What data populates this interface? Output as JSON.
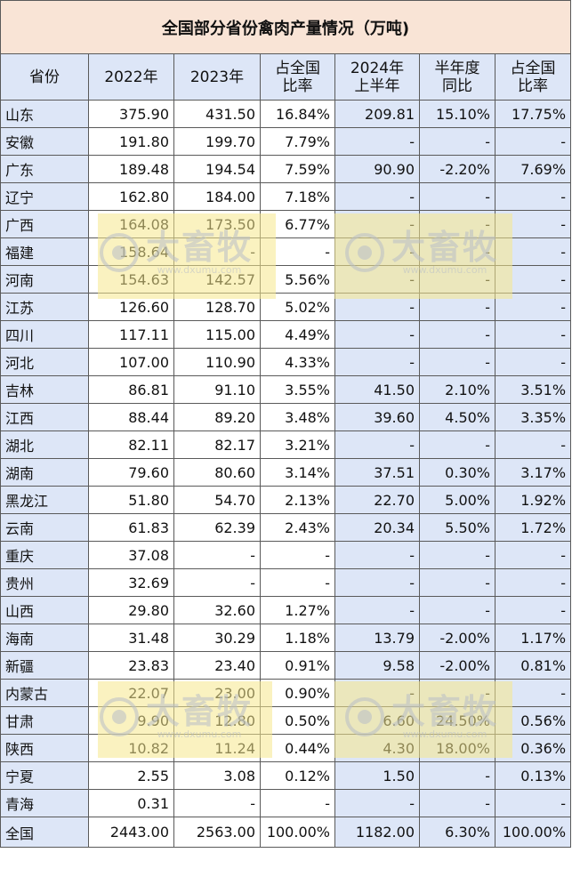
{
  "title": "全国部分省份禽肉产量情况（万吨)",
  "headers": {
    "province": "省份",
    "y2022": "2022年",
    "y2023": "2023年",
    "share2023_l1": "占全国",
    "share2023_l2": "比率",
    "h2024_l1": "2024年",
    "h2024_l2": "上半年",
    "yoy_l1": "半年度",
    "yoy_l2": "同比",
    "share2024_l1": "占全国",
    "share2024_l2": "比率"
  },
  "rows": [
    {
      "province": "山东",
      "y2022": "375.90",
      "y2023": "431.50",
      "share2023": "16.84%",
      "h2024": "209.81",
      "yoy": "15.10%",
      "yoy_color": "red",
      "share2024": "17.75%"
    },
    {
      "province": "安徽",
      "y2022": "191.80",
      "y2023": "199.70",
      "share2023": "7.79%",
      "h2024": "-",
      "yoy": "-",
      "yoy_color": "",
      "share2024": "-"
    },
    {
      "province": "广东",
      "y2022": "189.48",
      "y2023": "194.54",
      "share2023": "7.59%",
      "h2024": "90.90",
      "yoy": "-2.20%",
      "yoy_color": "green",
      "share2024": "7.69%"
    },
    {
      "province": "辽宁",
      "y2022": "162.80",
      "y2023": "184.00",
      "share2023": "7.18%",
      "h2024": "-",
      "yoy": "-",
      "yoy_color": "",
      "share2024": "-"
    },
    {
      "province": "广西",
      "y2022": "164.08",
      "y2023": "173.50",
      "share2023": "6.77%",
      "h2024": "-",
      "yoy": "-",
      "yoy_color": "",
      "share2024": "-"
    },
    {
      "province": "福建",
      "y2022": "158.64",
      "y2023": "-",
      "share2023": "-",
      "h2024": "-",
      "yoy": "-",
      "yoy_color": "",
      "share2024": "-"
    },
    {
      "province": "河南",
      "y2022": "154.63",
      "y2023": "142.57",
      "share2023": "5.56%",
      "h2024": "-",
      "yoy": "-",
      "yoy_color": "",
      "share2024": "-"
    },
    {
      "province": "江苏",
      "y2022": "126.60",
      "y2023": "128.70",
      "share2023": "5.02%",
      "h2024": "-",
      "yoy": "-",
      "yoy_color": "",
      "share2024": "-"
    },
    {
      "province": "四川",
      "y2022": "117.11",
      "y2023": "115.00",
      "share2023": "4.49%",
      "h2024": "-",
      "yoy": "-",
      "yoy_color": "",
      "share2024": "-"
    },
    {
      "province": "河北",
      "y2022": "107.00",
      "y2023": "110.90",
      "share2023": "4.33%",
      "h2024": "-",
      "yoy": "-",
      "yoy_color": "",
      "share2024": "-"
    },
    {
      "province": "吉林",
      "y2022": "86.81",
      "y2023": "91.10",
      "share2023": "3.55%",
      "h2024": "41.50",
      "yoy": "2.10%",
      "yoy_color": "red",
      "share2024": "3.51%"
    },
    {
      "province": "江西",
      "y2022": "88.44",
      "y2023": "89.20",
      "share2023": "3.48%",
      "h2024": "39.60",
      "yoy": "4.50%",
      "yoy_color": "red",
      "share2024": "3.35%"
    },
    {
      "province": "湖北",
      "y2022": "82.11",
      "y2023": "82.17",
      "share2023": "3.21%",
      "h2024": "-",
      "yoy": "-",
      "yoy_color": "",
      "share2024": "-"
    },
    {
      "province": "湖南",
      "y2022": "79.60",
      "y2023": "80.60",
      "share2023": "3.14%",
      "h2024": "37.51",
      "yoy": "0.30%",
      "yoy_color": "red",
      "share2024": "3.17%"
    },
    {
      "province": "黑龙江",
      "y2022": "51.80",
      "y2023": "54.70",
      "share2023": "2.13%",
      "h2024": "22.70",
      "yoy": "5.00%",
      "yoy_color": "red",
      "share2024": "1.92%"
    },
    {
      "province": "云南",
      "y2022": "61.83",
      "y2023": "62.39",
      "share2023": "2.43%",
      "h2024": "20.34",
      "yoy": "5.50%",
      "yoy_color": "red",
      "share2024": "1.72%"
    },
    {
      "province": "重庆",
      "y2022": "37.08",
      "y2023": "-",
      "share2023": "-",
      "h2024": "-",
      "yoy": "-",
      "yoy_color": "",
      "share2024": "-"
    },
    {
      "province": "贵州",
      "y2022": "32.69",
      "y2023": "-",
      "share2023": "-",
      "h2024": "-",
      "yoy": "-",
      "yoy_color": "",
      "share2024": "-"
    },
    {
      "province": "山西",
      "y2022": "29.80",
      "y2023": "32.60",
      "share2023": "1.27%",
      "h2024": "-",
      "yoy": "-",
      "yoy_color": "",
      "share2024": "-"
    },
    {
      "province": "海南",
      "y2022": "31.48",
      "y2023": "30.29",
      "share2023": "1.18%",
      "h2024": "13.79",
      "yoy": "-2.00%",
      "yoy_color": "green",
      "share2024": "1.17%"
    },
    {
      "province": "新疆",
      "y2022": "23.83",
      "y2023": "23.40",
      "share2023": "0.91%",
      "h2024": "9.58",
      "yoy": "-2.00%",
      "yoy_color": "green",
      "share2024": "0.81%"
    },
    {
      "province": "内蒙古",
      "y2022": "22.07",
      "y2023": "23.00",
      "share2023": "0.90%",
      "h2024": "-",
      "yoy": "-",
      "yoy_color": "",
      "share2024": "-"
    },
    {
      "province": "甘肃",
      "y2022": "9.90",
      "y2023": "12.80",
      "share2023": "0.50%",
      "h2024": "6.60",
      "yoy": "24.50%",
      "yoy_color": "red",
      "share2024": "0.56%"
    },
    {
      "province": "陕西",
      "y2022": "10.82",
      "y2023": "11.24",
      "share2023": "0.44%",
      "h2024": "4.30",
      "yoy": "18.00%",
      "yoy_color": "red",
      "share2024": "0.36%"
    },
    {
      "province": "宁夏",
      "y2022": "2.55",
      "y2023": "3.08",
      "share2023": "0.12%",
      "h2024": "1.50",
      "yoy": "-",
      "yoy_color": "",
      "share2024": "0.13%"
    },
    {
      "province": "青海",
      "y2022": "0.31",
      "y2023": "-",
      "share2023": "-",
      "h2024": "-",
      "yoy": "-",
      "yoy_color": "",
      "share2024": "-"
    },
    {
      "province": "全国",
      "y2022": "2443.00",
      "y2023": "2563.00",
      "share2023": "100.00%",
      "h2024": "1182.00",
      "yoy": "6.30%",
      "yoy_color": "red",
      "share2024": "100.00%"
    }
  ],
  "watermark": {
    "text_cn": "大畜牧",
    "text_en": "www.dxumu.com",
    "icon": "dxumu-logo-icon"
  }
}
